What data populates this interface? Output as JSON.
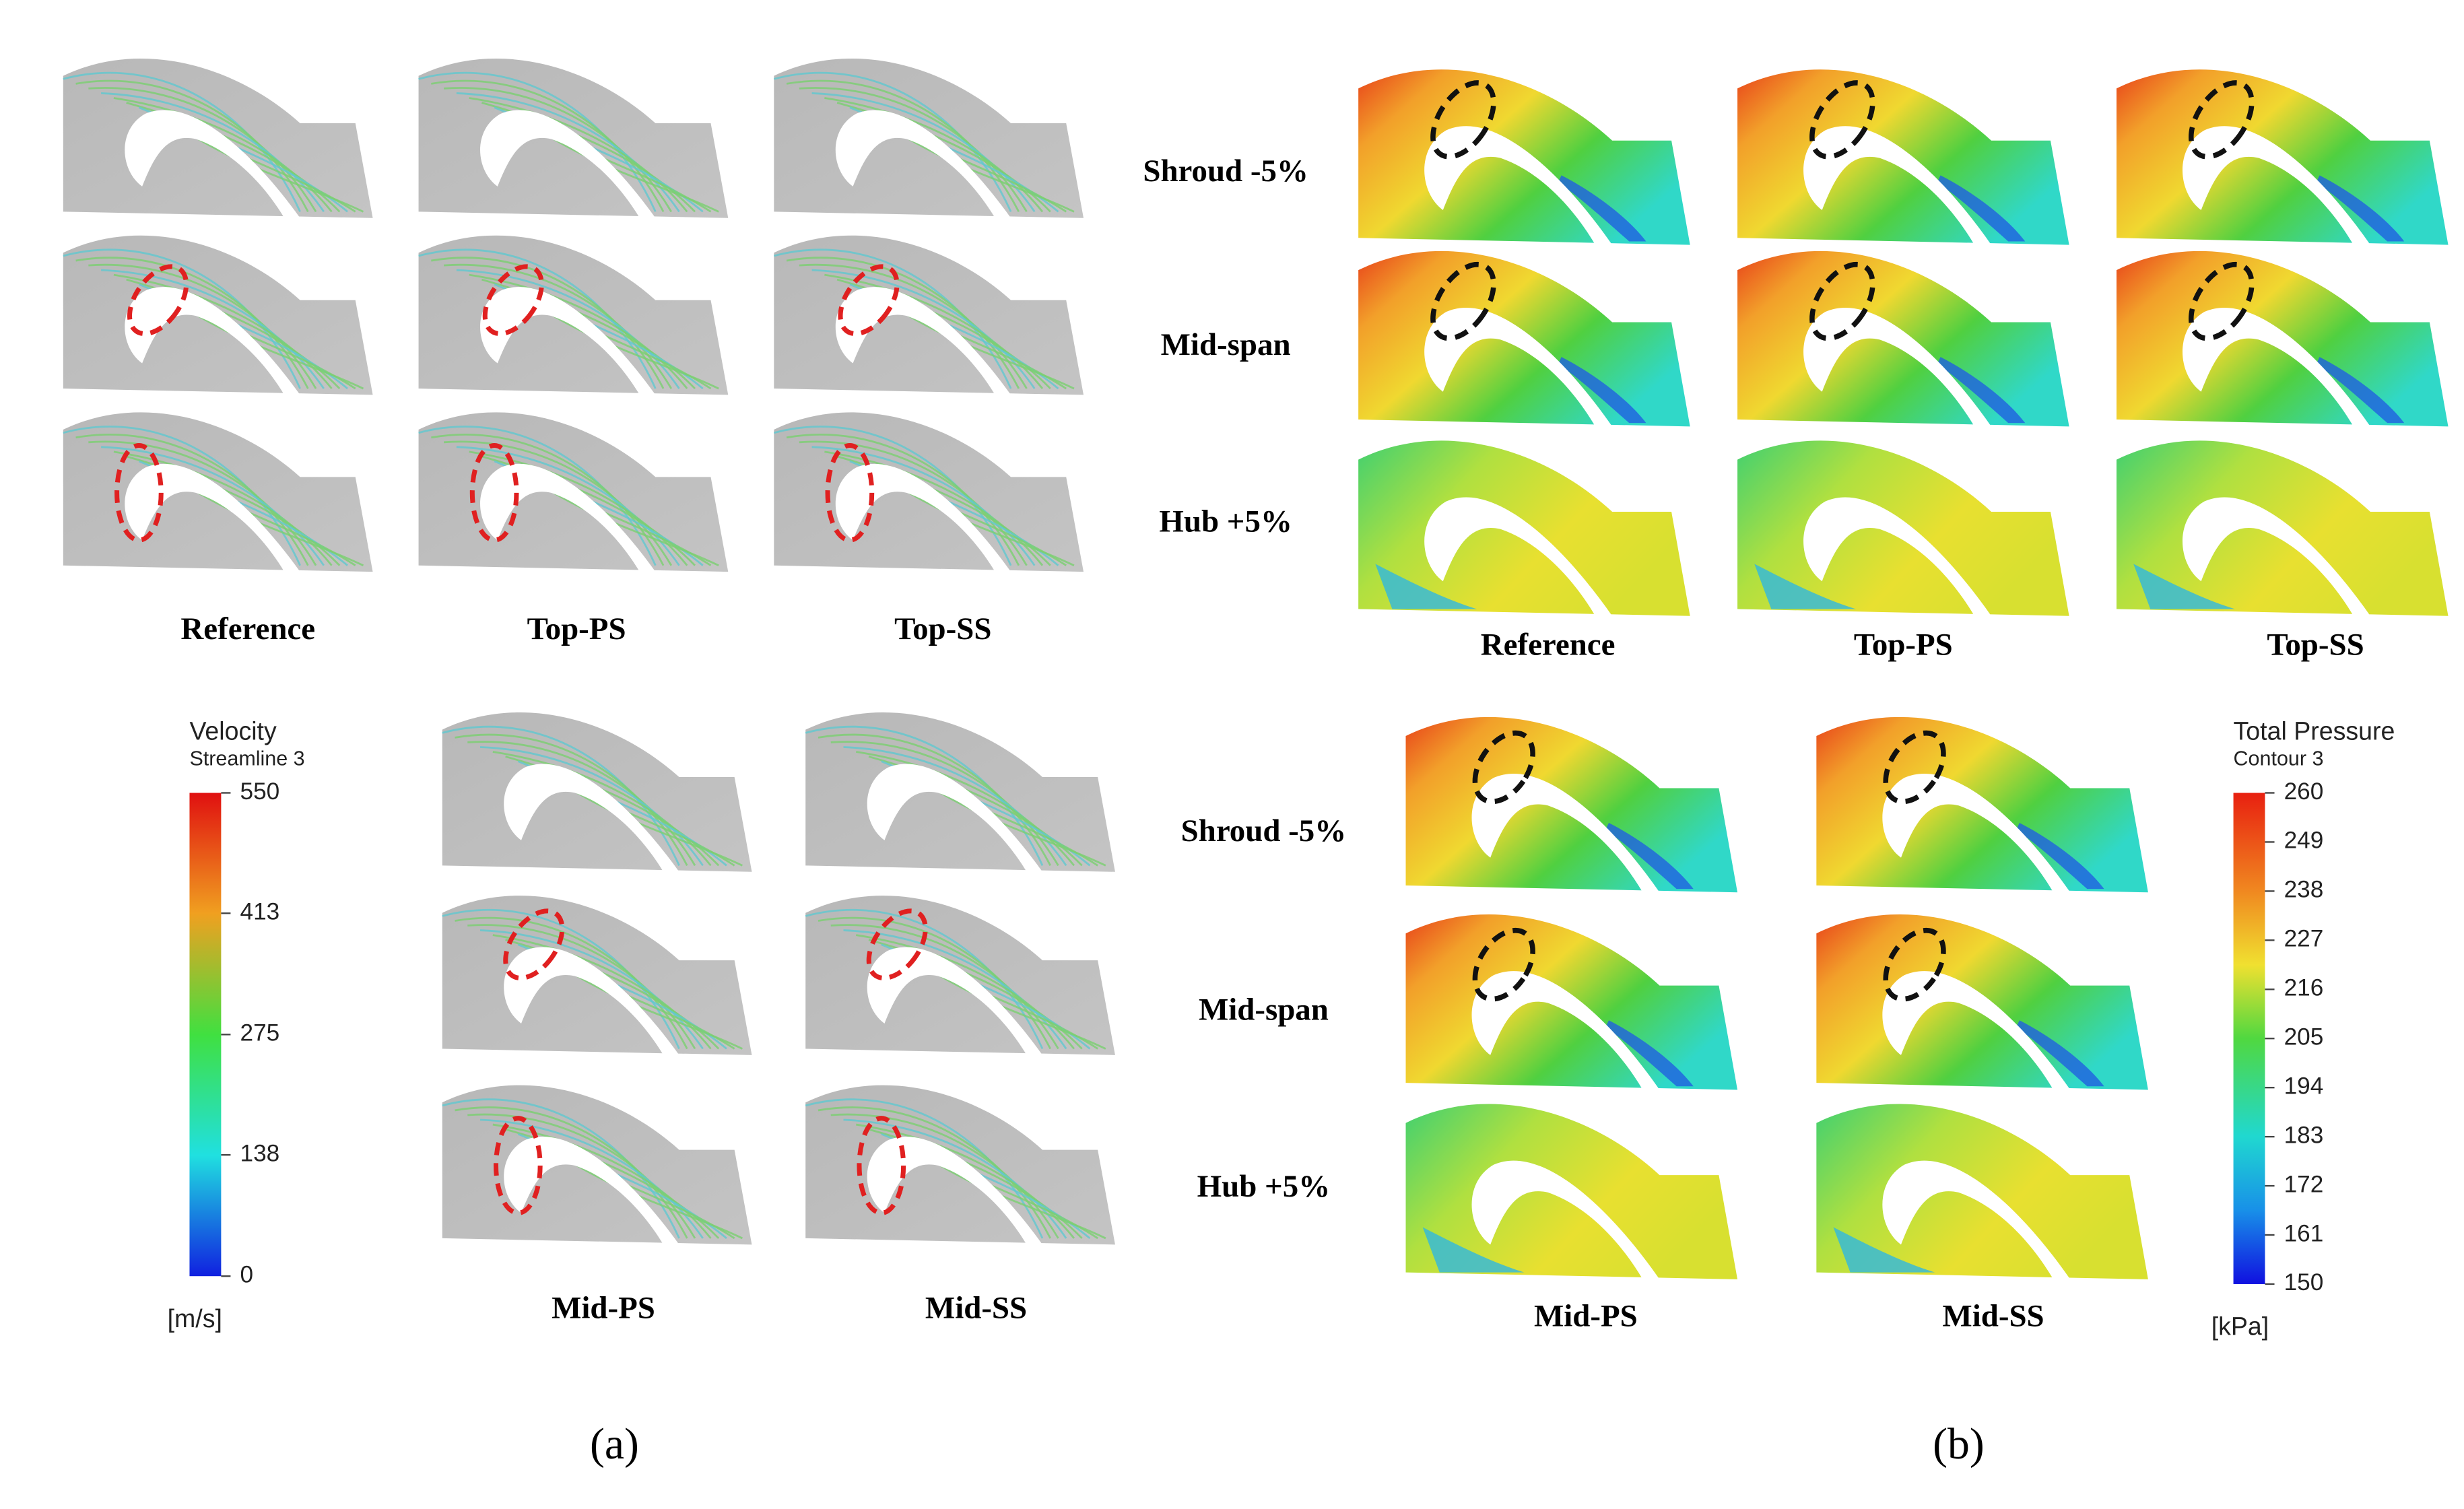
{
  "panel_a": {
    "label": "(a)",
    "columns_top": [
      "Reference",
      "Top-PS",
      "Top-SS"
    ],
    "columns_bottom": [
      "Mid-PS",
      "Mid-SS"
    ],
    "colorbar": {
      "title": "Velocity",
      "subtitle": "Streamline 3",
      "lim": [
        0,
        550
      ],
      "ticks": [
        550,
        413,
        275,
        138,
        0
      ],
      "unit": "[m/s]"
    }
  },
  "panel_b": {
    "label": "(b)",
    "rows_top": [
      "Shroud -5%",
      "Mid-span",
      "Hub +5%"
    ],
    "rows_bottom": [
      "Shroud -5%",
      "Mid-span",
      "Hub +5%"
    ],
    "columns_top": [
      "Reference",
      "Top-PS",
      "Top-SS"
    ],
    "columns_bottom": [
      "Mid-PS",
      "Mid-SS"
    ],
    "colorbar": {
      "title": "Total Pressure",
      "subtitle": "Contour 3",
      "lim": [
        150,
        260
      ],
      "ticks": [
        260,
        249,
        238,
        227,
        216,
        205,
        194,
        183,
        172,
        161,
        150
      ],
      "unit": "[kPa]"
    }
  }
}
